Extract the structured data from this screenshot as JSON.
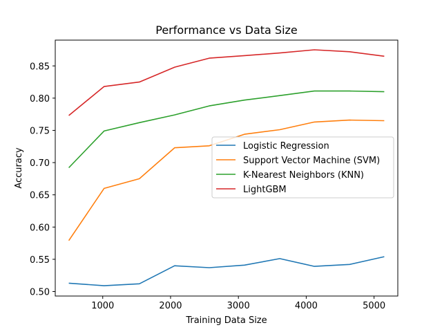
{
  "chart_data": {
    "type": "line",
    "title": "Performance vs Data Size",
    "xlabel": "Training Data Size",
    "ylabel": "Accuracy",
    "xlim": [
      300,
      5350
    ],
    "ylim": [
      0.493,
      0.89
    ],
    "xticks": [
      1000,
      2000,
      3000,
      4000,
      5000
    ],
    "xtick_labels": [
      "1000",
      "2000",
      "3000",
      "4000",
      "5000"
    ],
    "yticks": [
      0.5,
      0.55,
      0.6,
      0.65,
      0.7,
      0.75,
      0.8,
      0.85
    ],
    "ytick_labels": [
      "0.50",
      "0.55",
      "0.60",
      "0.65",
      "0.70",
      "0.75",
      "0.80",
      "0.85"
    ],
    "grid": false,
    "legend_position": "center-right",
    "x": [
      500,
      1020,
      1540,
      2060,
      2570,
      3090,
      3610,
      4120,
      4640,
      5150
    ],
    "series": [
      {
        "name": "Logistic Regression",
        "color": "#1f77b4",
        "values": [
          0.513,
          0.509,
          0.512,
          0.54,
          0.537,
          0.541,
          0.551,
          0.539,
          0.542,
          0.554
        ]
      },
      {
        "name": "Support Vector Machine (SVM)",
        "color": "#ff7f0e",
        "values": [
          0.579,
          0.66,
          0.675,
          0.723,
          0.726,
          0.744,
          0.751,
          0.763,
          0.766,
          0.765
        ]
      },
      {
        "name": "K-Nearest Neighbors (KNN)",
        "color": "#2ca02c",
        "values": [
          0.692,
          0.749,
          0.762,
          0.774,
          0.788,
          0.797,
          0.804,
          0.811,
          0.811,
          0.81
        ]
      },
      {
        "name": "LightGBM",
        "color": "#d62728",
        "values": [
          0.773,
          0.818,
          0.825,
          0.848,
          0.862,
          0.866,
          0.87,
          0.875,
          0.872,
          0.865
        ]
      }
    ]
  }
}
